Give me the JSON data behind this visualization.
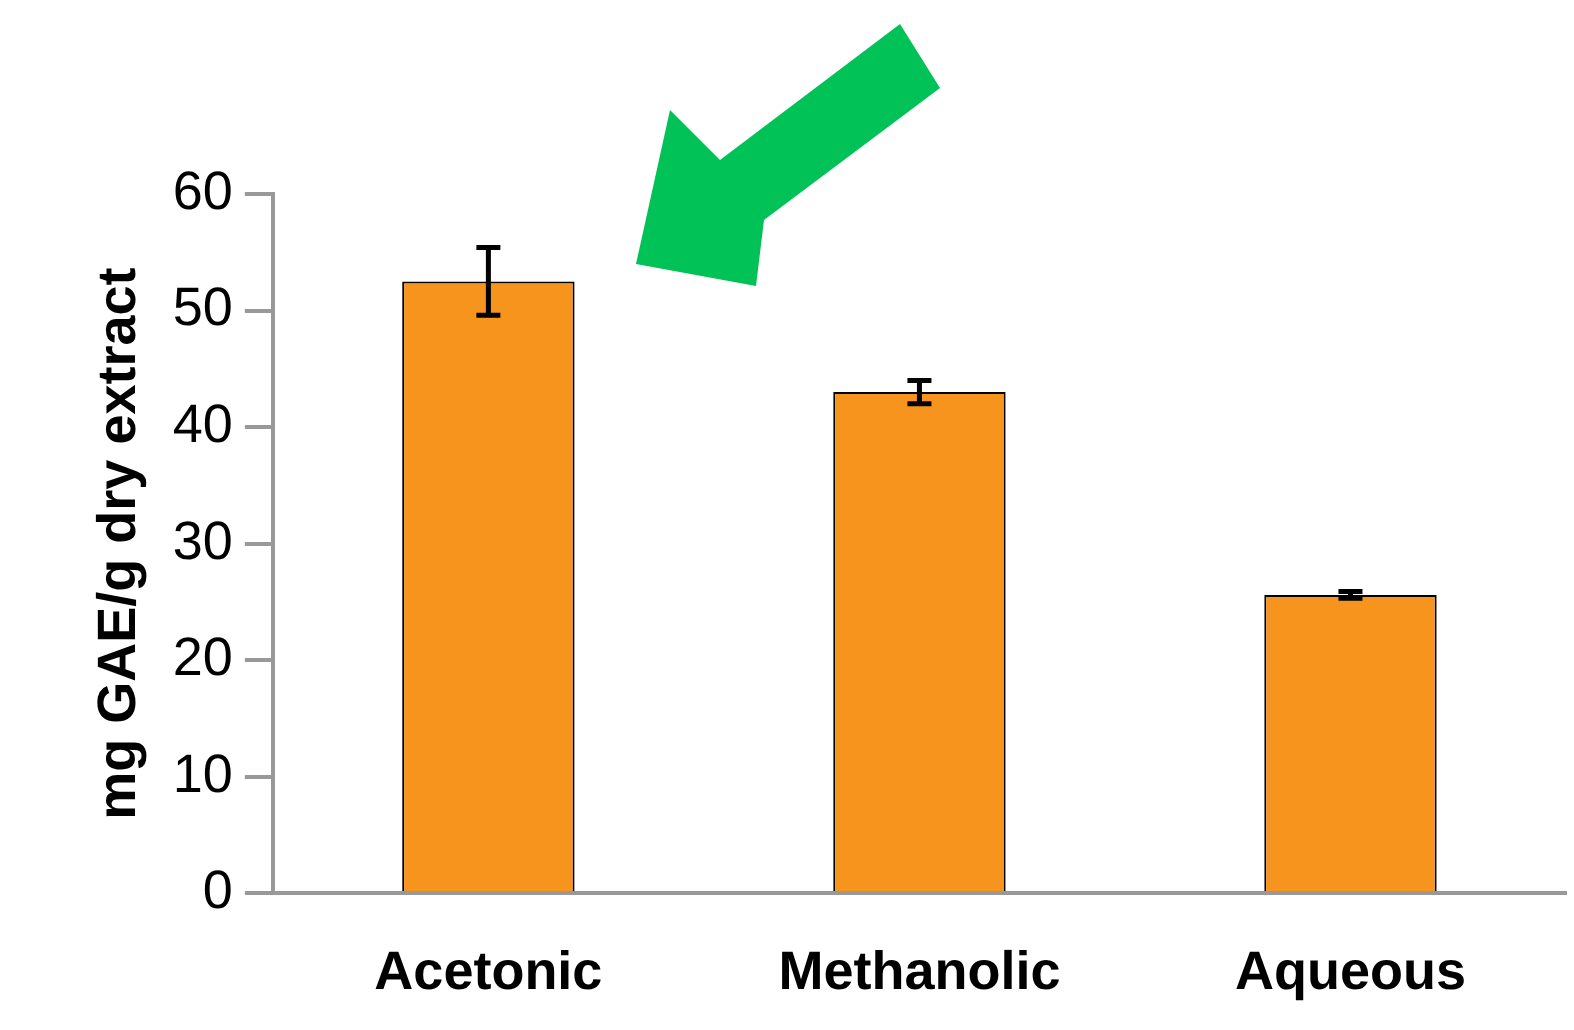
{
  "chart_data": {
    "type": "bar",
    "ylabel": "mg GAE/g dry extract",
    "categories": [
      "Acetonic",
      "Methanolic",
      "Aqueous"
    ],
    "values": [
      52.5,
      43.0,
      25.6
    ],
    "errors": [
      2.9,
      1.0,
      0.3
    ],
    "color": "#f7941d",
    "ylim": [
      0,
      60
    ],
    "yticks": [
      0,
      10,
      20,
      30,
      40,
      50,
      60
    ],
    "grid": false,
    "legend": false
  }
}
